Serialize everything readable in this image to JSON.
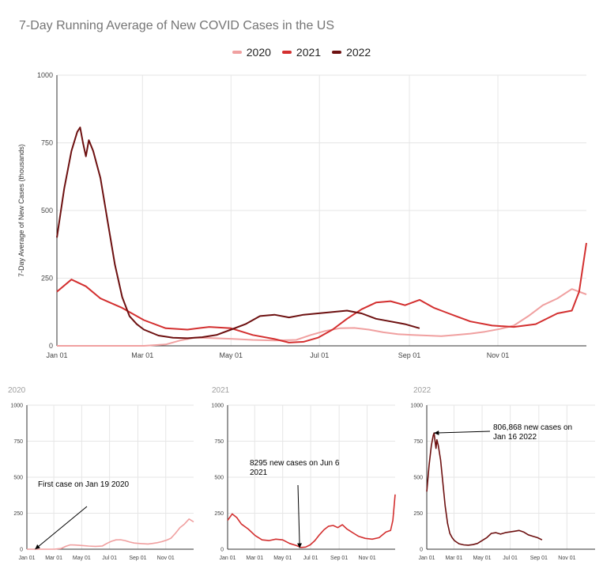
{
  "chart_data": [
    {
      "type": "line",
      "title": "7-Day Running Average of New COVID Cases in the US",
      "ylabel": "7-Day Average of New Cases (thousands)",
      "ylim": [
        0,
        1000
      ],
      "yticks": [
        0,
        250,
        500,
        750,
        1000
      ],
      "xtick_labels": [
        "Jan 01",
        "Mar 01",
        "May 01",
        "Jul 01",
        "Sep 01",
        "Nov 01"
      ],
      "grid": true,
      "legend": "top-center",
      "colors": {
        "2020": "#f0a0a0",
        "2021": "#d32f2f",
        "2022": "#6d1010"
      },
      "series": [
        {
          "name": "2020",
          "x_day": [
            0,
            20,
            40,
            60,
            75,
            85,
            95,
            105,
            120,
            135,
            150,
            165,
            175,
            185,
            195,
            205,
            215,
            225,
            235,
            245,
            255,
            265,
            275,
            285,
            295,
            305,
            315,
            325,
            335,
            345,
            355,
            365
          ],
          "values": [
            0,
            0,
            0,
            0,
            5,
            20,
            30,
            29,
            26,
            22,
            20,
            22,
            40,
            55,
            65,
            66,
            60,
            50,
            43,
            40,
            38,
            36,
            40,
            45,
            52,
            62,
            75,
            110,
            150,
            175,
            210,
            190
          ]
        },
        {
          "name": "2021",
          "x_day": [
            0,
            10,
            20,
            30,
            45,
            60,
            75,
            90,
            105,
            120,
            135,
            150,
            160,
            170,
            180,
            190,
            200,
            210,
            220,
            230,
            240,
            250,
            260,
            265,
            270,
            275,
            285,
            300,
            315,
            330,
            345,
            355,
            360,
            365
          ],
          "values": [
            200,
            245,
            220,
            175,
            140,
            95,
            65,
            60,
            70,
            65,
            40,
            25,
            12,
            15,
            30,
            60,
            100,
            135,
            160,
            165,
            150,
            170,
            140,
            130,
            120,
            110,
            90,
            75,
            70,
            80,
            120,
            130,
            200,
            380
          ]
        },
        {
          "name": "2022",
          "x_day": [
            0,
            5,
            10,
            14,
            16,
            18,
            20,
            22,
            25,
            30,
            35,
            40,
            45,
            50,
            55,
            60,
            70,
            80,
            90,
            100,
            110,
            120,
            130,
            140,
            150,
            160,
            170,
            180,
            190,
            200,
            210,
            220,
            230,
            240,
            250
          ],
          "values": [
            400,
            580,
            720,
            790,
            807,
            750,
            700,
            760,
            720,
            620,
            460,
            300,
            180,
            110,
            80,
            60,
            38,
            30,
            28,
            32,
            40,
            60,
            80,
            110,
            115,
            105,
            115,
            120,
            125,
            130,
            120,
            100,
            90,
            80,
            65
          ]
        }
      ]
    },
    {
      "type": "line",
      "panel_label": "2020",
      "ylim": [
        0,
        1000
      ],
      "yticks": [
        0,
        250,
        500,
        750,
        1000
      ],
      "xtick_labels": [
        "Jan 01",
        "Mar 01",
        "May 01",
        "Jul 01",
        "Sep 01",
        "Nov 01"
      ],
      "color": "#f0a0a0",
      "series": [
        {
          "name": "2020",
          "x_day": [
            0,
            20,
            40,
            60,
            75,
            85,
            95,
            105,
            120,
            135,
            150,
            165,
            175,
            185,
            195,
            205,
            215,
            225,
            235,
            245,
            255,
            265,
            275,
            285,
            295,
            305,
            315,
            325,
            335,
            345,
            355,
            365
          ],
          "values": [
            0,
            0,
            0,
            0,
            5,
            20,
            30,
            29,
            26,
            22,
            20,
            22,
            40,
            55,
            65,
            66,
            60,
            50,
            43,
            40,
            38,
            36,
            40,
            45,
            52,
            62,
            75,
            110,
            150,
            175,
            210,
            190
          ]
        }
      ],
      "annotation": {
        "text": "First case on Jan 19 2020",
        "x_day": 18,
        "y": 0
      }
    },
    {
      "type": "line",
      "panel_label": "2021",
      "ylim": [
        0,
        1000
      ],
      "yticks": [
        0,
        250,
        500,
        750,
        1000
      ],
      "xtick_labels": [
        "Jan 01",
        "Mar 01",
        "May 01",
        "Jul 01",
        "Sep 01",
        "Nov 01"
      ],
      "color": "#d32f2f",
      "series": [
        {
          "name": "2021",
          "x_day": [
            0,
            10,
            20,
            30,
            45,
            60,
            75,
            90,
            105,
            120,
            135,
            150,
            160,
            170,
            180,
            190,
            200,
            210,
            220,
            230,
            240,
            250,
            260,
            265,
            270,
            275,
            285,
            300,
            315,
            330,
            345,
            355,
            360,
            365
          ],
          "values": [
            200,
            245,
            220,
            175,
            140,
            95,
            65,
            60,
            70,
            65,
            40,
            25,
            12,
            15,
            30,
            60,
            100,
            135,
            160,
            165,
            150,
            170,
            140,
            130,
            120,
            110,
            90,
            75,
            70,
            80,
            120,
            130,
            200,
            380
          ]
        }
      ],
      "annotation": {
        "text_lines": [
          "8295 new cases on Jun 6",
          "2021"
        ],
        "x_day": 157,
        "y": 8
      }
    },
    {
      "type": "line",
      "panel_label": "2022",
      "ylim": [
        0,
        1000
      ],
      "yticks": [
        0,
        250,
        500,
        750,
        1000
      ],
      "xtick_labels": [
        "Jan 01",
        "Mar 01",
        "May 01",
        "Jul 01",
        "Sep 01",
        "Nov 01"
      ],
      "color": "#6d1010",
      "series": [
        {
          "name": "2022",
          "x_day": [
            0,
            5,
            10,
            14,
            16,
            18,
            20,
            22,
            25,
            30,
            35,
            40,
            45,
            50,
            55,
            60,
            70,
            80,
            90,
            100,
            110,
            120,
            130,
            140,
            150,
            160,
            170,
            180,
            190,
            200,
            210,
            220,
            230,
            240,
            250
          ],
          "values": [
            400,
            580,
            720,
            790,
            807,
            750,
            700,
            760,
            720,
            620,
            460,
            300,
            180,
            110,
            80,
            60,
            38,
            30,
            28,
            32,
            40,
            60,
            80,
            110,
            115,
            105,
            115,
            120,
            125,
            130,
            120,
            100,
            90,
            80,
            65
          ]
        }
      ],
      "annotation": {
        "text_lines": [
          "806,868 new cases on",
          "Jan 16 2022"
        ],
        "x_day": 16,
        "y": 807
      }
    }
  ]
}
